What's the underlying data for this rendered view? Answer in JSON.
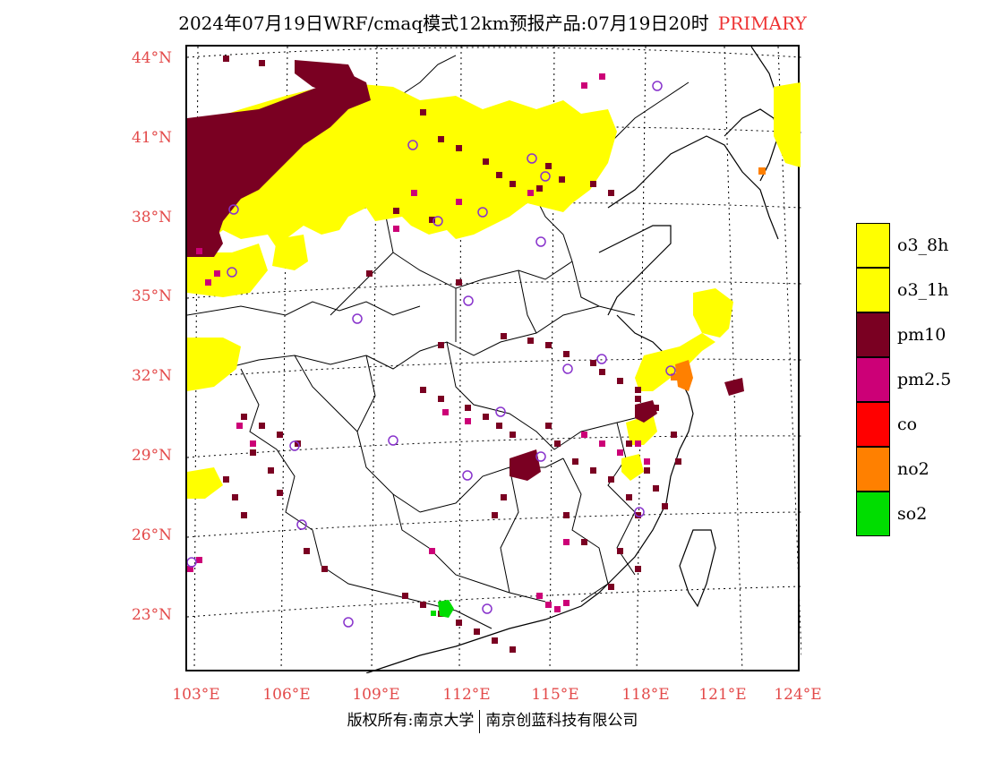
{
  "title": {
    "text": "2024年07月19日WRF/cmaq模式12km预报产品:07月19日20时",
    "tag": "PRIMARY",
    "tag_color": "#e33333"
  },
  "map": {
    "lat_labels": [
      "44°N",
      "41°N",
      "38°N",
      "35°N",
      "32°N",
      "29°N",
      "26°N",
      "23°N"
    ],
    "lon_labels": [
      "103°E",
      "106°E",
      "109°E",
      "112°E",
      "115°E",
      "118°E",
      "121°E",
      "124°E"
    ],
    "label_color": "#e34a4a",
    "pollutant_colors": {
      "o3": "#ffff00",
      "pm10": "#7a0022",
      "pm25": "#cc0077",
      "no2": "#ff8000",
      "so2": "#00dd00",
      "station_marker": "#8833cc"
    }
  },
  "legend": [
    {
      "label": "o3_8h",
      "color": "#ffff00"
    },
    {
      "label": "o3_1h",
      "color": "#ffff00"
    },
    {
      "label": "pm10",
      "color": "#7a0022"
    },
    {
      "label": "pm2.5",
      "color": "#cc0077"
    },
    {
      "label": "co",
      "color": "#ff0000"
    },
    {
      "label": "no2",
      "color": "#ff8000"
    },
    {
      "label": "so2",
      "color": "#00dd00"
    }
  ],
  "footer": {
    "left": "版权所有:南京大学",
    "right": "南京创蓝科技有限公司"
  }
}
